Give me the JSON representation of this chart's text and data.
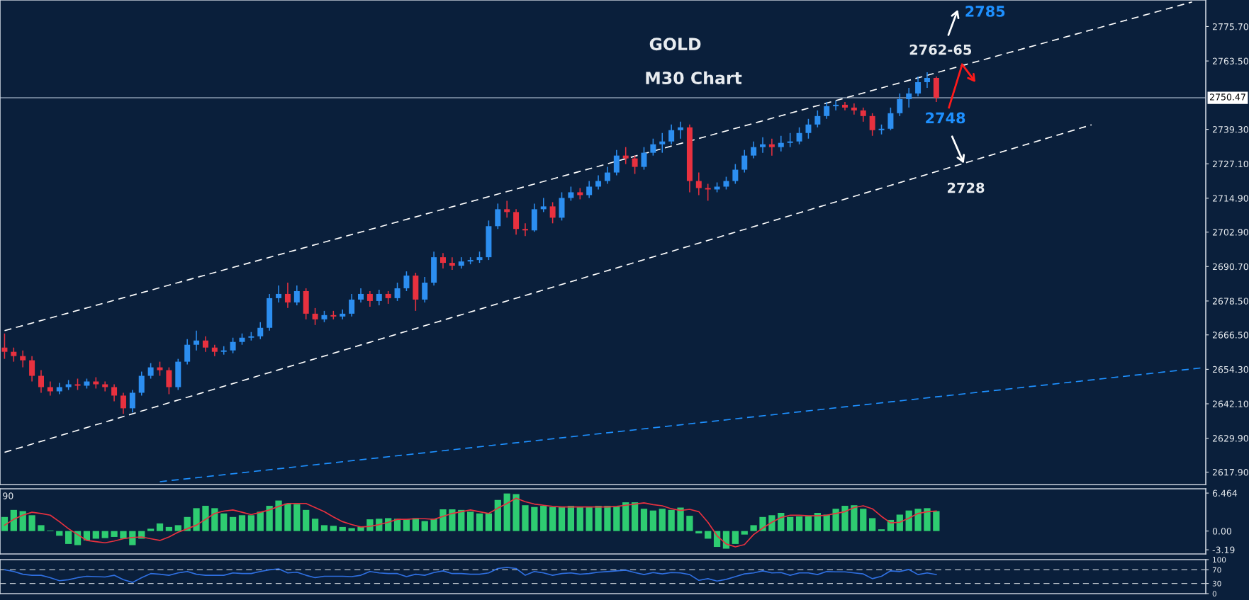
{
  "chart_data": [
    {
      "type": "candlestick",
      "tick_labels": "y",
      "categories": [
        null,
        null,
        null,
        null,
        null,
        null,
        null,
        null,
        null,
        null,
        null,
        null,
        null,
        null,
        null,
        null,
        null,
        null,
        null,
        null,
        null,
        null,
        null,
        null,
        null,
        null,
        null,
        null,
        null,
        null,
        null,
        null,
        null,
        null,
        null,
        null,
        null,
        null,
        null,
        null,
        null,
        null,
        null,
        null,
        null,
        null,
        null,
        null,
        null,
        null,
        null,
        null,
        null,
        null,
        null,
        null,
        null,
        null,
        null,
        null,
        null,
        null,
        null,
        null,
        null,
        null,
        null,
        null,
        null,
        null,
        null,
        null,
        null,
        null,
        null,
        null,
        null,
        null,
        null,
        null,
        null,
        null,
        null,
        null,
        null,
        null,
        null,
        null,
        null,
        null,
        null,
        null,
        null,
        null,
        null,
        null,
        null,
        null,
        null,
        null,
        null,
        null,
        null,
        null,
        null,
        null,
        null,
        null,
        null,
        null,
        null,
        null,
        null,
        null,
        null,
        null,
        null,
        null,
        null,
        null,
        null,
        null,
        null,
        null,
        null,
        null,
        null,
        null,
        null,
        null,
        null,
        null
      ],
      "ohlc": [
        [
          2662,
          2667,
          2658,
          2660.5
        ],
        [
          2660.5,
          2662,
          2657,
          2659
        ],
        [
          2659,
          2661,
          2655,
          2657.5
        ],
        [
          2657.5,
          2659,
          2650,
          2652
        ],
        [
          2652,
          2654,
          2646,
          2648
        ],
        [
          2648,
          2650,
          2645,
          2646.5
        ],
        [
          2646.5,
          2649.5,
          2645.5,
          2648
        ],
        [
          2648,
          2650.5,
          2647,
          2649
        ],
        [
          2649,
          2651,
          2647,
          2648.5
        ],
        [
          2648.5,
          2651,
          2647.5,
          2650
        ],
        [
          2650,
          2651.5,
          2647.5,
          2649
        ],
        [
          2649,
          2650,
          2646.5,
          2648
        ],
        [
          2648,
          2649,
          2643,
          2645
        ],
        [
          2645,
          2646,
          2638.5,
          2640.5
        ],
        [
          2640.5,
          2647,
          2639,
          2646
        ],
        [
          2646,
          2653.5,
          2645,
          2652
        ],
        [
          2652,
          2656.5,
          2651,
          2655
        ],
        [
          2655,
          2657,
          2652,
          2654
        ],
        [
          2654,
          2655,
          2645.5,
          2648
        ],
        [
          2648,
          2658,
          2647,
          2657
        ],
        [
          2657,
          2665,
          2656,
          2663
        ],
        [
          2663,
          2668,
          2661,
          2664.5
        ],
        [
          2664.5,
          2666,
          2660.5,
          2662
        ],
        [
          2662,
          2663,
          2659,
          2660.5
        ],
        [
          2660.5,
          2662.5,
          2659.5,
          2661
        ],
        [
          2661,
          2665.5,
          2660,
          2664
        ],
        [
          2664,
          2667,
          2663,
          2665.5
        ],
        [
          2665.5,
          2667.5,
          2664.5,
          2666
        ],
        [
          2666,
          2671,
          2665,
          2669
        ],
        [
          2669,
          2681,
          2668,
          2679.5
        ],
        [
          2679.5,
          2684,
          2678,
          2681
        ],
        [
          2681,
          2685,
          2676,
          2678
        ],
        [
          2678,
          2684,
          2677,
          2682
        ],
        [
          2682,
          2683,
          2672,
          2674
        ],
        [
          2674,
          2676,
          2670,
          2672
        ],
        [
          2672,
          2675,
          2671,
          2673.5
        ],
        [
          2673.5,
          2675,
          2672,
          2673
        ],
        [
          2673,
          2675.5,
          2672,
          2674
        ],
        [
          2674,
          2681,
          2673,
          2679
        ],
        [
          2679,
          2683,
          2678,
          2681
        ],
        [
          2681,
          2682,
          2676.5,
          2678.5
        ],
        [
          2678.5,
          2682.5,
          2677,
          2681
        ],
        [
          2681,
          2682,
          2677.5,
          2679.5
        ],
        [
          2679.5,
          2685,
          2678.5,
          2683
        ],
        [
          2683,
          2689,
          2682,
          2687.5
        ],
        [
          2687.5,
          2688.5,
          2675,
          2679
        ],
        [
          2679,
          2687,
          2678,
          2685
        ],
        [
          2685,
          2696,
          2684,
          2694
        ],
        [
          2694,
          2695.5,
          2690,
          2692
        ],
        [
          2692,
          2694,
          2689.5,
          2691
        ],
        [
          2691,
          2694,
          2690,
          2692.5
        ],
        [
          2692.5,
          2694,
          2691.5,
          2693
        ],
        [
          2693,
          2696,
          2692,
          2694
        ],
        [
          2694,
          2707,
          2693,
          2705
        ],
        [
          2705,
          2713,
          2704,
          2711
        ],
        [
          2711,
          2714,
          2708,
          2710
        ],
        [
          2710,
          2711,
          2702,
          2704
        ],
        [
          2704,
          2706,
          2701.5,
          2703.5
        ],
        [
          2703.5,
          2713,
          2703,
          2711
        ],
        [
          2711,
          2715,
          2710,
          2712
        ],
        [
          2712,
          2713.5,
          2706,
          2708
        ],
        [
          2708,
          2717,
          2707,
          2715
        ],
        [
          2715,
          2719,
          2714,
          2717
        ],
        [
          2717,
          2718.5,
          2714.5,
          2716
        ],
        [
          2716,
          2721,
          2715,
          2719
        ],
        [
          2719,
          2723,
          2718,
          2721
        ],
        [
          2721,
          2726,
          2720,
          2724
        ],
        [
          2724,
          2732,
          2723,
          2730
        ],
        [
          2730,
          2733,
          2727,
          2729
        ],
        [
          2729,
          2730,
          2723.5,
          2726
        ],
        [
          2726,
          2733,
          2725,
          2731
        ],
        [
          2731,
          2736,
          2730,
          2734
        ],
        [
          2734,
          2738,
          2731,
          2735
        ],
        [
          2735,
          2741,
          2734,
          2739
        ],
        [
          2739,
          2742,
          2736,
          2740
        ],
        [
          2740,
          2741,
          2717,
          2721
        ],
        [
          2721,
          2724,
          2716,
          2718.5
        ],
        [
          2718.5,
          2720,
          2714,
          2718
        ],
        [
          2718,
          2720.5,
          2717,
          2719
        ],
        [
          2719,
          2722.5,
          2718,
          2721
        ],
        [
          2721,
          2727,
          2720,
          2725
        ],
        [
          2725,
          2732,
          2724,
          2730
        ],
        [
          2730,
          2735,
          2729,
          2733
        ],
        [
          2733,
          2736.5,
          2731,
          2734
        ],
        [
          2734,
          2736,
          2730,
          2733
        ],
        [
          2733,
          2737,
          2731.5,
          2734.5
        ],
        [
          2734.5,
          2738,
          2733,
          2735
        ],
        [
          2735,
          2740,
          2734,
          2738
        ],
        [
          2738,
          2743,
          2736,
          2741
        ],
        [
          2741,
          2746,
          2740,
          2744
        ],
        [
          2744,
          2749,
          2743,
          2747.5
        ],
        [
          2747.5,
          2749.5,
          2746,
          2748
        ],
        [
          2748,
          2749,
          2746,
          2747
        ],
        [
          2747,
          2748.5,
          2744.5,
          2746
        ],
        [
          2746,
          2747,
          2742,
          2744
        ],
        [
          2744,
          2745,
          2737,
          2739
        ],
        [
          2739,
          2741,
          2737.5,
          2739.5
        ],
        [
          2739.5,
          2747,
          2739,
          2745
        ],
        [
          2745,
          2752,
          2744,
          2750
        ],
        [
          2750,
          2754,
          2747,
          2752
        ],
        [
          2752,
          2758,
          2751,
          2756
        ],
        [
          2756,
          2759.5,
          2754,
          2757.5
        ],
        [
          2757.5,
          2758,
          2749,
          2750.5
        ],
        null,
        null,
        null,
        null,
        null,
        null,
        null,
        null,
        null,
        null,
        null,
        null,
        null,
        null,
        null,
        null,
        null,
        null,
        null,
        null,
        null,
        null,
        null,
        null,
        null,
        null,
        null,
        null,
        null
      ],
      "series": [
        {
          "type": "line",
          "color": "#ffffff",
          "line_style": "dashed",
          "values": [
            2668,
            null,
            null,
            null,
            null,
            null,
            null,
            null,
            null,
            null,
            null,
            null,
            null,
            null,
            null,
            null,
            null,
            null,
            null,
            null,
            null,
            null,
            null,
            null,
            null,
            null,
            null,
            null,
            null,
            null,
            null,
            null,
            null,
            null,
            null,
            null,
            null,
            null,
            null,
            null,
            null,
            null,
            null,
            null,
            null,
            null,
            null,
            null,
            null,
            null,
            null,
            null,
            null,
            null,
            null,
            null,
            null,
            null,
            null,
            null,
            null,
            null,
            null,
            null,
            null,
            null,
            null,
            null,
            null,
            null,
            null,
            null,
            null,
            null,
            null,
            null,
            null,
            null,
            null,
            null,
            null,
            null,
            null,
            null,
            null,
            null,
            null,
            null,
            null,
            null,
            null,
            null,
            null,
            null,
            null,
            null,
            null,
            null,
            null,
            null,
            null,
            null,
            null,
            null,
            null,
            null,
            null,
            null,
            null,
            null,
            null,
            null,
            null,
            null,
            null,
            null,
            null,
            null,
            null,
            null,
            null,
            null,
            null,
            null,
            null,
            null,
            null,
            null,
            null,
            null,
            2784.4,
            null
          ]
        },
        {
          "type": "line",
          "color": "#ffffff",
          "line_style": "dashed",
          "values": [
            2624.9,
            null,
            null,
            null,
            null,
            null,
            null,
            null,
            null,
            null,
            null,
            null,
            null,
            null,
            null,
            null,
            null,
            null,
            null,
            null,
            null,
            null,
            null,
            null,
            null,
            null,
            null,
            null,
            null,
            null,
            null,
            null,
            null,
            null,
            null,
            null,
            null,
            null,
            null,
            null,
            null,
            null,
            null,
            null,
            null,
            null,
            null,
            null,
            null,
            null,
            null,
            null,
            null,
            null,
            null,
            null,
            null,
            null,
            null,
            null,
            null,
            null,
            null,
            null,
            null,
            null,
            null,
            null,
            null,
            null,
            null,
            null,
            null,
            null,
            null,
            null,
            null,
            null,
            null,
            null,
            null,
            null,
            null,
            null,
            null,
            null,
            null,
            null,
            null,
            null,
            null,
            null,
            null,
            null,
            null,
            null,
            null,
            null,
            null,
            null,
            null,
            null,
            null,
            null,
            null,
            null,
            null,
            null,
            null,
            null,
            null,
            null,
            null,
            null,
            null,
            null,
            null,
            null,
            null,
            2740.9,
            null,
            null,
            null,
            null,
            null,
            null,
            null,
            null,
            null,
            null,
            null,
            null
          ]
        },
        {
          "type": "line",
          "color": "#1e90ff",
          "line_style": "dashed",
          "values": [
            null,
            null,
            null,
            null,
            null,
            null,
            null,
            null,
            null,
            null,
            null,
            null,
            null,
            null,
            null,
            null,
            null,
            2614.5,
            null,
            null,
            null,
            null,
            null,
            null,
            null,
            null,
            null,
            null,
            null,
            null,
            null,
            null,
            null,
            null,
            null,
            null,
            null,
            null,
            null,
            null,
            null,
            null,
            null,
            null,
            null,
            null,
            null,
            null,
            null,
            null,
            null,
            null,
            null,
            null,
            null,
            null,
            null,
            null,
            null,
            null,
            null,
            null,
            null,
            null,
            null,
            null,
            null,
            null,
            null,
            null,
            null,
            null,
            null,
            null,
            null,
            null,
            null,
            null,
            null,
            null,
            null,
            null,
            null,
            null,
            null,
            null,
            null,
            null,
            null,
            null,
            null,
            null,
            null,
            null,
            null,
            null,
            null,
            null,
            null,
            null,
            null,
            null,
            null,
            null,
            null,
            null,
            null,
            null,
            null,
            null,
            null,
            null,
            null,
            null,
            null,
            null,
            null,
            null,
            null,
            null,
            null,
            null,
            null,
            null,
            null,
            null,
            null,
            null,
            null,
            null,
            null,
            2654.8
          ]
        }
      ],
      "ylim": [
        2613.5,
        2785.1
      ],
      "yticks": [
        {
          "value": 2617.9,
          "label": "2617.90"
        },
        {
          "value": 2629.9,
          "label": "2629.90"
        },
        {
          "value": 2642.1,
          "label": "2642.10"
        },
        {
          "value": 2654.3,
          "label": "2654.30"
        },
        {
          "value": 2666.5,
          "label": "2666.50"
        },
        {
          "value": 2678.5,
          "label": "2678.50"
        },
        {
          "value": 2690.7,
          "label": "2690.70"
        },
        {
          "value": 2702.9,
          "label": "2702.90"
        },
        {
          "value": 2714.9,
          "label": "2714.90"
        },
        {
          "value": 2727.1,
          "label": "2727.10"
        },
        {
          "value": 2739.3,
          "label": "2739.30"
        },
        {
          "value": 2763.5,
          "label": "2763.50"
        },
        {
          "value": 2775.7,
          "label": "2775.70"
        }
      ],
      "ref_lines": [
        {
          "axis": "y",
          "value": 2750.47,
          "label": "2750.47",
          "color": "#8a9bb0"
        }
      ],
      "annotations": [
        "GOLD",
        "M30 Chart",
        "2785",
        "2762-65",
        "2748",
        "2728"
      ]
    },
    {
      "type": "bar",
      "tick_labels": "y",
      "categories": [
        null,
        null,
        null,
        null,
        null,
        null,
        null,
        null,
        null,
        null,
        null,
        null,
        null,
        null,
        null,
        null,
        null,
        null,
        null,
        null,
        null,
        null,
        null,
        null,
        null,
        null,
        null,
        null,
        null,
        null,
        null,
        null,
        null,
        null,
        null,
        null,
        null,
        null,
        null,
        null,
        null,
        null,
        null,
        null,
        null,
        null,
        null,
        null,
        null,
        null,
        null,
        null,
        null,
        null,
        null,
        null,
        null,
        null,
        null,
        null,
        null,
        null,
        null,
        null,
        null,
        null,
        null,
        null,
        null,
        null,
        null,
        null,
        null,
        null,
        null,
        null,
        null,
        null,
        null,
        null,
        null,
        null,
        null,
        null,
        null,
        null,
        null,
        null,
        null,
        null,
        null,
        null,
        null,
        null,
        null,
        null,
        null,
        null,
        null,
        null,
        null,
        null,
        null
      ],
      "series": [
        {
          "type": "bar",
          "color": "#2ecc71",
          "values": [
            2.4,
            3.6,
            3.4,
            2.7,
            1.0,
            0.1,
            -0.8,
            -2.2,
            -2.4,
            -1.6,
            -1.3,
            -1.2,
            -1.0,
            -1.3,
            -2.4,
            -1.3,
            0.4,
            1.3,
            0.7,
            1.0,
            2.4,
            3.9,
            4.3,
            3.9,
            3.0,
            2.4,
            2.7,
            2.7,
            3.3,
            4.3,
            5.2,
            4.7,
            4.6,
            3.6,
            2.1,
            1.0,
            0.9,
            0.7,
            0.5,
            0.7,
            2.0,
            2.1,
            2.2,
            2.1,
            2.0,
            2.2,
            1.7,
            2.1,
            3.7,
            3.7,
            3.6,
            3.3,
            3.0,
            3.0,
            5.3,
            6.4,
            6.3,
            4.4,
            4.1,
            4.3,
            4.1,
            4.1,
            4.3,
            4.1,
            4.1,
            4.3,
            4.3,
            4.2,
            4.9,
            4.9,
            3.8,
            3.5,
            3.8,
            3.6,
            4.0,
            2.6,
            -0.4,
            -1.3,
            -2.7,
            -3.0,
            -2.2,
            -0.6,
            1.0,
            2.4,
            2.7,
            3.1,
            2.4,
            2.5,
            2.5,
            3.1,
            2.8,
            3.8,
            4.3,
            4.4,
            3.8,
            2.2,
            0.3,
            1.9,
            2.8,
            3.5,
            3.8,
            3.9,
            3.4
          ]
        },
        {
          "type": "line",
          "color": "#e8313f",
          "values": [
            1.0,
            2.0,
            2.7,
            3.2,
            3.0,
            2.7,
            1.6,
            0.4,
            -0.6,
            -1.6,
            -1.8,
            -2.0,
            -1.7,
            -1.3,
            -1.1,
            -1.0,
            -1.3,
            -1.6,
            -1.0,
            -0.2,
            0.4,
            1.0,
            2.0,
            3.0,
            3.4,
            3.6,
            3.2,
            2.8,
            3.2,
            3.6,
            4.2,
            4.7,
            4.7,
            4.7,
            4.0,
            3.3,
            2.4,
            1.6,
            1.1,
            0.7,
            0.8,
            1.1,
            1.5,
            2.0,
            2.0,
            2.1,
            2.1,
            2.0,
            2.5,
            3.0,
            3.3,
            3.6,
            3.3,
            3.0,
            3.9,
            4.7,
            5.6,
            5.0,
            4.6,
            4.4,
            4.2,
            4.1,
            4.1,
            4.1,
            4.1,
            4.1,
            4.1,
            4.2,
            4.4,
            4.6,
            4.8,
            4.5,
            4.3,
            3.8,
            3.5,
            3.7,
            3.3,
            1.5,
            -0.8,
            -2.2,
            -2.7,
            -2.3,
            -0.6,
            0.5,
            1.5,
            2.3,
            2.7,
            2.7,
            2.6,
            2.6,
            2.7,
            3.0,
            3.3,
            4.0,
            4.3,
            3.8,
            2.5,
            1.4,
            1.5,
            2.2,
            3.0,
            3.3,
            3.4
          ]
        }
      ],
      "ylim": [
        -3.9,
        7.2
      ],
      "yticks": [
        6.464,
        {
          "value": 0,
          "label": "0.00"
        },
        -3.19
      ],
      "annotations": [
        "90"
      ]
    },
    {
      "type": "line",
      "tick_labels": "y",
      "categories": [
        null,
        null,
        null,
        null,
        null,
        null,
        null,
        null,
        null,
        null,
        null,
        null,
        null,
        null,
        null,
        null,
        null,
        null,
        null,
        null,
        null,
        null,
        null,
        null,
        null,
        null,
        null,
        null,
        null,
        null,
        null,
        null,
        null,
        null,
        null,
        null,
        null,
        null,
        null,
        null,
        null,
        null,
        null,
        null,
        null,
        null,
        null,
        null,
        null,
        null,
        null,
        null,
        null,
        null,
        null,
        null,
        null,
        null,
        null,
        null,
        null,
        null,
        null,
        null,
        null,
        null,
        null,
        null,
        null,
        null,
        null,
        null,
        null,
        null,
        null,
        null,
        null,
        null,
        null,
        null,
        null,
        null,
        null,
        null,
        null,
        null,
        null,
        null,
        null,
        null,
        null,
        null,
        null,
        null,
        null,
        null,
        null,
        null,
        null,
        null,
        null,
        null,
        null
      ],
      "series": [
        {
          "color": "#2f6fe0",
          "values": [
            70,
            65,
            57,
            54,
            54,
            47,
            38,
            41,
            47,
            51,
            50,
            49,
            54,
            41,
            33,
            47,
            59,
            57,
            54,
            61,
            65,
            57,
            54,
            54,
            54,
            61,
            59,
            59,
            65,
            70,
            73,
            61,
            63,
            54,
            47,
            51,
            51,
            51,
            50,
            54,
            65,
            61,
            59,
            59,
            50,
            57,
            54,
            62,
            67,
            59,
            59,
            57,
            57,
            61,
            74,
            77,
            74,
            54,
            65,
            61,
            54,
            59,
            61,
            57,
            59,
            63,
            65,
            67,
            69,
            62,
            56,
            62,
            58,
            62,
            61,
            56,
            39,
            44,
            37,
            42,
            50,
            58,
            61,
            67,
            61,
            62,
            54,
            61,
            61,
            56,
            65,
            64,
            64,
            61,
            58,
            44,
            51,
            67,
            65,
            71,
            56,
            61,
            56
          ]
        }
      ],
      "ylim": [
        0,
        100
      ],
      "yticks": [
        100,
        70,
        30,
        0
      ],
      "ref_lines": [
        {
          "axis": "y",
          "value": 70,
          "color": "#c0c8d0",
          "line_style": "dashed"
        },
        {
          "axis": "y",
          "value": 30,
          "color": "#c0c8d0",
          "line_style": "dashed"
        }
      ]
    }
  ]
}
